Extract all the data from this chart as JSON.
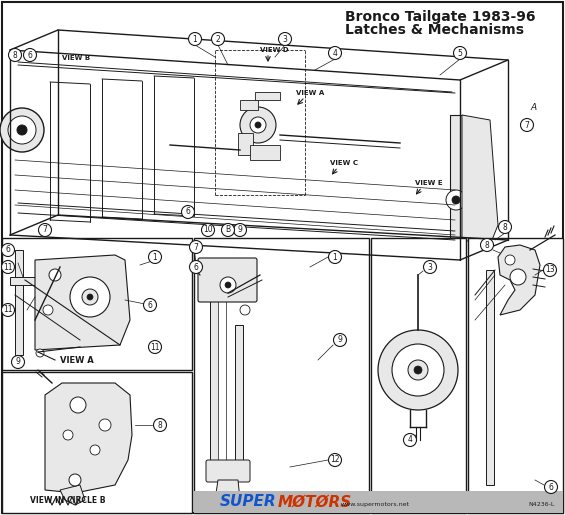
{
  "title_line1": "Bronco Tailgate 1983-96",
  "title_line2": "Latches & Mechanisms",
  "bg_color": "#ffffff",
  "line_color": "#1a1a1a",
  "fig_width": 5.65,
  "fig_height": 5.15,
  "dpi": 100,
  "watermark_text": "SUPERMØTØRS",
  "watermark_super": "SUPER",
  "watermark_motors": "MØTØRS",
  "watermark_url": "www.supermotors.net",
  "watermark_code": "N4236-L",
  "gray_bg": "#d0d0d0",
  "light_gray": "#e8e8e8",
  "super_color": "#1155cc",
  "motors_color": "#cc3300"
}
